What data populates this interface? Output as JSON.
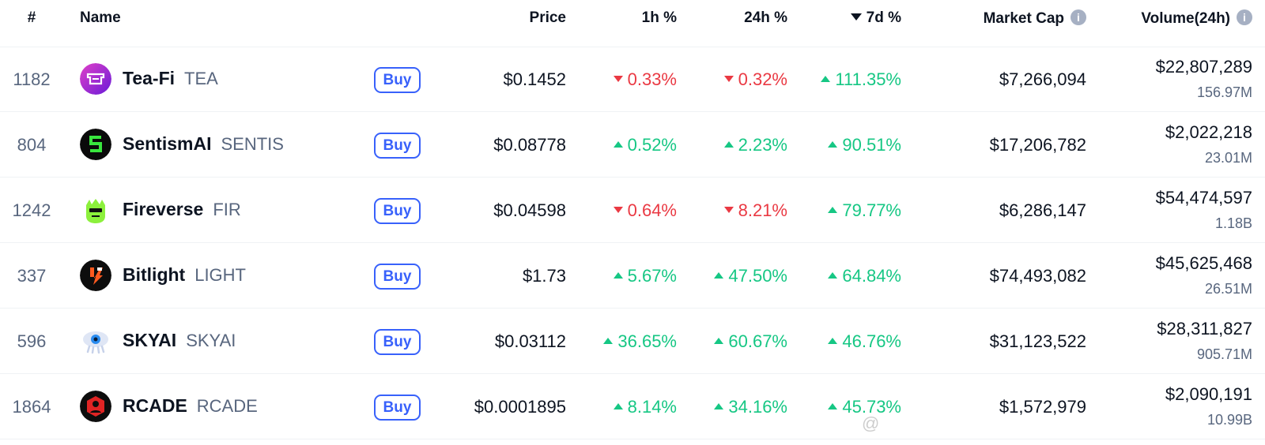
{
  "header": {
    "rank": "#",
    "name": "Name",
    "price": "Price",
    "h1": "1h %",
    "h24": "24h %",
    "d7": "7d %",
    "market_cap": "Market Cap",
    "volume": "Volume(24h)",
    "info_glyph": "i"
  },
  "buy_label": "Buy",
  "colors": {
    "up": "#16c784",
    "down": "#ea3943",
    "accent": "#3861fb"
  },
  "rows": [
    {
      "rank": "1182",
      "name": "Tea-Fi",
      "symbol": "TEA",
      "icon": "tea-fi-logo-icon",
      "price": "$0.1452",
      "h1": "0.33%",
      "h1_dir": "down",
      "h24": "0.32%",
      "h24_dir": "down",
      "d7": "111.35%",
      "d7_dir": "up",
      "market_cap": "$7,266,094",
      "volume": "$22,807,289",
      "volume_tokens": "156.97M"
    },
    {
      "rank": "804",
      "name": "SentismAI",
      "symbol": "SENTIS",
      "icon": "sentismai-logo-icon",
      "price": "$0.08778",
      "h1": "0.52%",
      "h1_dir": "up",
      "h24": "2.23%",
      "h24_dir": "up",
      "d7": "90.51%",
      "d7_dir": "up",
      "market_cap": "$17,206,782",
      "volume": "$2,022,218",
      "volume_tokens": "23.01M"
    },
    {
      "rank": "1242",
      "name": "Fireverse",
      "symbol": "FIR",
      "icon": "fireverse-logo-icon",
      "price": "$0.04598",
      "h1": "0.64%",
      "h1_dir": "down",
      "h24": "8.21%",
      "h24_dir": "down",
      "d7": "79.77%",
      "d7_dir": "up",
      "market_cap": "$6,286,147",
      "volume": "$54,474,597",
      "volume_tokens": "1.18B"
    },
    {
      "rank": "337",
      "name": "Bitlight",
      "symbol": "LIGHT",
      "icon": "bitlight-logo-icon",
      "price": "$1.73",
      "h1": "5.67%",
      "h1_dir": "up",
      "h24": "47.50%",
      "h24_dir": "up",
      "d7": "64.84%",
      "d7_dir": "up",
      "market_cap": "$74,493,082",
      "volume": "$45,625,468",
      "volume_tokens": "26.51M"
    },
    {
      "rank": "596",
      "name": "SKYAI",
      "symbol": "SKYAI",
      "icon": "skyai-logo-icon",
      "price": "$0.03112",
      "h1": "36.65%",
      "h1_dir": "up",
      "h24": "60.67%",
      "h24_dir": "up",
      "d7": "46.76%",
      "d7_dir": "up",
      "market_cap": "$31,123,522",
      "volume": "$28,311,827",
      "volume_tokens": "905.71M"
    },
    {
      "rank": "1864",
      "name": "RCADE",
      "symbol": "RCADE",
      "icon": "rcade-logo-icon",
      "price": "$0.0001895",
      "h1": "8.14%",
      "h1_dir": "up",
      "h24": "34.16%",
      "h24_dir": "up",
      "d7": "45.73%",
      "d7_dir": "up",
      "market_cap": "$1,572,979",
      "volume": "$2,090,191",
      "volume_tokens": "10.99B"
    }
  ],
  "watermark": "@"
}
